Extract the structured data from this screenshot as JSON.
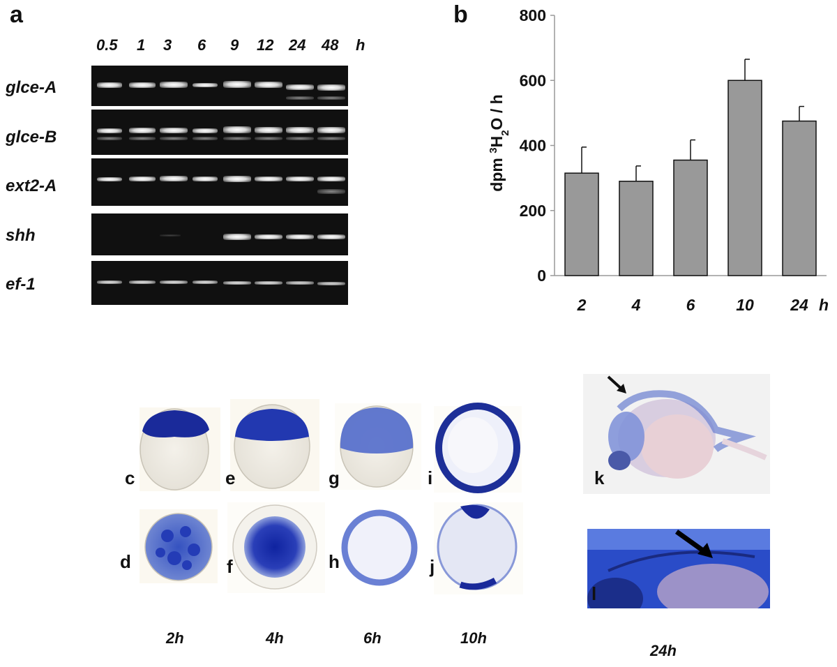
{
  "panel_a": {
    "letter": "a",
    "time_points": [
      "0.5",
      "1",
      "3",
      "6",
      "9",
      "12",
      "24",
      "48"
    ],
    "time_unit": "h",
    "genes": [
      "glce-A",
      "glce-B",
      "ext2-A",
      "shh",
      "ef-1"
    ]
  },
  "panel_b": {
    "letter": "b",
    "ylabel_html": "dpm ³H₂O / h",
    "x_unit": "h"
  },
  "chart_data": {
    "type": "bar",
    "categories": [
      "2",
      "4",
      "6",
      "10",
      "24"
    ],
    "values": [
      315,
      290,
      355,
      600,
      475
    ],
    "errors": [
      80,
      47,
      62,
      65,
      45
    ],
    "ylim": [
      0,
      800
    ],
    "yticks": [
      0,
      200,
      400,
      600,
      800
    ],
    "bar_color": "#999999",
    "ylabel": "dpm ³H₂O / h",
    "xlabel": "h"
  },
  "panel_c_l": {
    "top_row_letters": [
      "c",
      "e",
      "g",
      "i"
    ],
    "bottom_row_letters": [
      "d",
      "f",
      "h",
      "j"
    ],
    "column_times": [
      "2h",
      "4h",
      "6h",
      "10h"
    ],
    "k_letter": "k",
    "l_letter": "l",
    "kl_time": "24h",
    "stain_color": "#1f3aa8"
  }
}
